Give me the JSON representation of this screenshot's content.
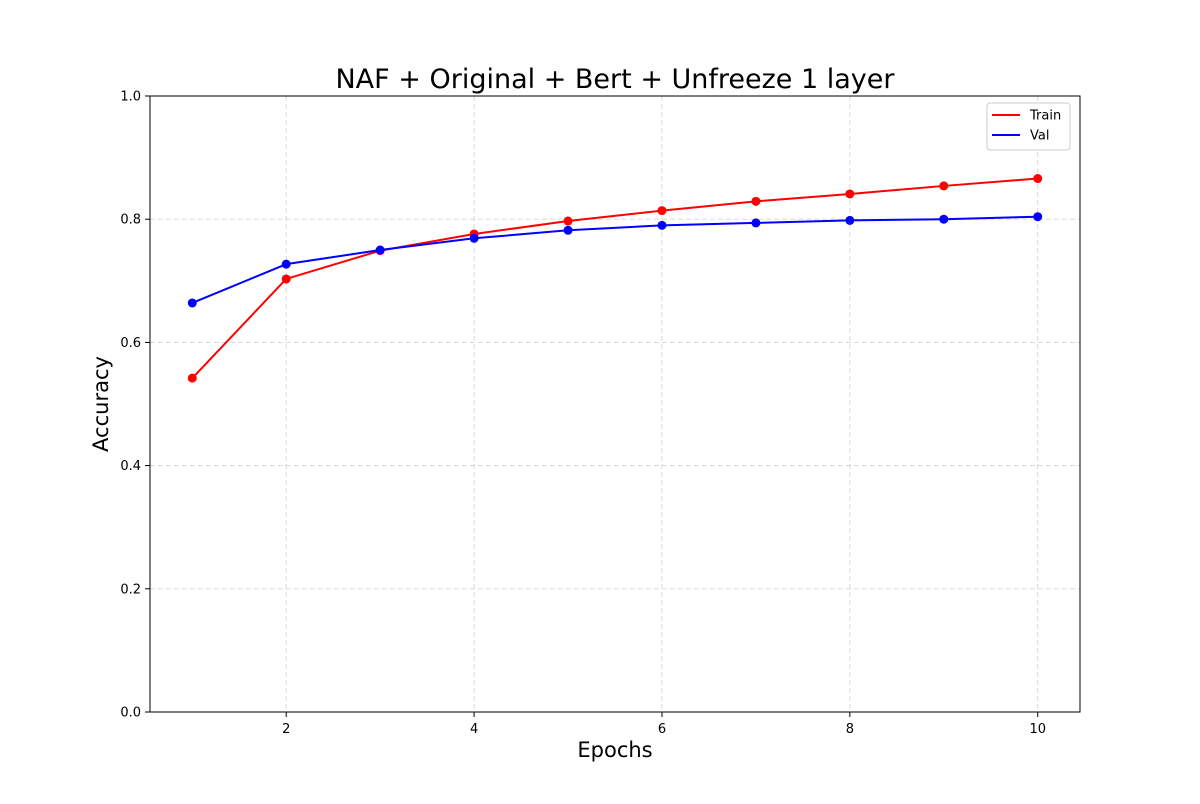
{
  "chart_data": {
    "type": "line",
    "title": "NAF + Original + Bert + Unfreeze 1 layer",
    "xlabel": "Epochs",
    "ylabel": "Accuracy",
    "x": [
      1,
      2,
      3,
      4,
      5,
      6,
      7,
      8,
      9,
      10
    ],
    "xlim": [
      0.55,
      10.45
    ],
    "ylim": [
      0.0,
      1.0
    ],
    "xticks": [
      2,
      4,
      6,
      8,
      10
    ],
    "xtick_labels": [
      "2",
      "4",
      "6",
      "8",
      "10"
    ],
    "yticks": [
      0.0,
      0.2,
      0.4,
      0.6,
      0.8,
      1.0
    ],
    "ytick_labels": [
      "0.0",
      "0.2",
      "0.4",
      "0.6",
      "0.8",
      "1.0"
    ],
    "grid": true,
    "legend_position": "top-right",
    "markers": true,
    "series": [
      {
        "name": "Train",
        "color": "#ff0000",
        "values": [
          0.542,
          0.703,
          0.749,
          0.776,
          0.797,
          0.814,
          0.829,
          0.841,
          0.854,
          0.866
        ]
      },
      {
        "name": "Val",
        "color": "#0000ff",
        "values": [
          0.664,
          0.727,
          0.75,
          0.769,
          0.782,
          0.79,
          0.794,
          0.798,
          0.8,
          0.804
        ]
      }
    ]
  }
}
